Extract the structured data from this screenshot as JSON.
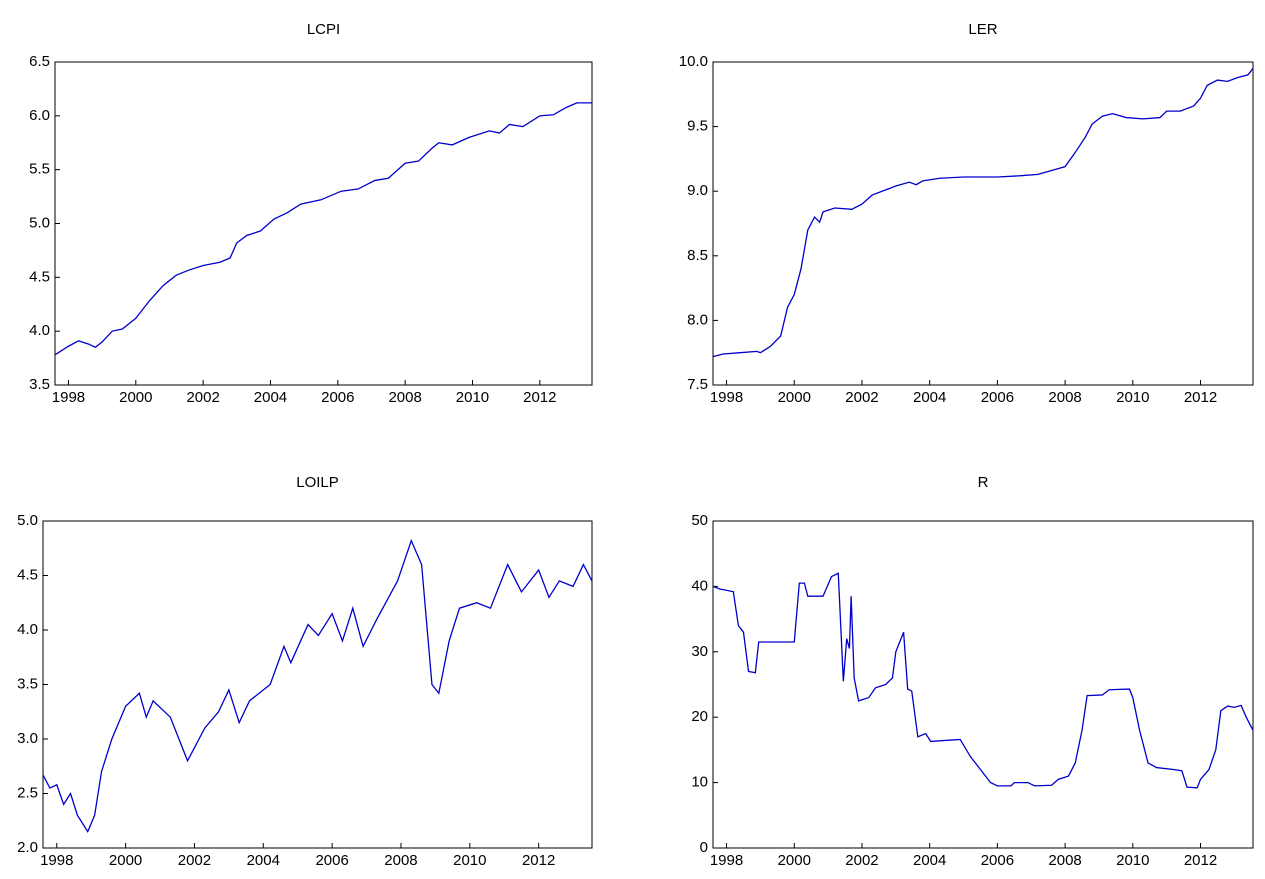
{
  "chart_data": [
    {
      "type": "line",
      "title": "LCPI",
      "color": "#0000cc",
      "x": [
        1997.6,
        1998.0,
        1998.3,
        1998.6,
        1998.8,
        1999.0,
        1999.3,
        1999.6,
        2000.0,
        2000.4,
        2000.8,
        2001.2,
        2001.6,
        2002.0,
        2002.5,
        2002.8,
        2003.0,
        2003.3,
        2003.7,
        2004.1,
        2004.5,
        2004.9,
        2005.5,
        2006.1,
        2006.6,
        2007.1,
        2007.5,
        2008.0,
        2008.4,
        2008.8,
        2009.0,
        2009.4,
        2009.9,
        2010.5,
        2010.8,
        2011.1,
        2011.5,
        2012.0,
        2012.4,
        2012.8,
        2013.1,
        2013.55
      ],
      "values": [
        3.78,
        3.86,
        3.91,
        3.88,
        3.85,
        3.9,
        4.0,
        4.02,
        4.12,
        4.28,
        4.42,
        4.52,
        4.57,
        4.61,
        4.64,
        4.68,
        4.82,
        4.89,
        4.93,
        5.04,
        5.1,
        5.18,
        5.22,
        5.3,
        5.32,
        5.4,
        5.42,
        5.56,
        5.58,
        5.7,
        5.75,
        5.73,
        5.8,
        5.86,
        5.84,
        5.92,
        5.9,
        6.0,
        6.01,
        6.08,
        6.12,
        6.12
      ],
      "xlim": [
        1997.6,
        2013.55
      ],
      "xticks": [
        1998,
        2000,
        2002,
        2004,
        2006,
        2008,
        2010,
        2012
      ],
      "ylim": [
        3.5,
        6.5
      ],
      "yticks": [
        3.5,
        {
          "value": 4,
          "label": "4.0"
        },
        4.5,
        {
          "value": 5,
          "label": "5.0"
        },
        5.5,
        {
          "value": 6,
          "label": "6.0"
        },
        6.5
      ]
    },
    {
      "type": "line",
      "title": "LER",
      "color": "#0000cc",
      "x": [
        1997.6,
        1997.9,
        1998.4,
        1998.9,
        1999.0,
        1999.3,
        1999.6,
        1999.8,
        2000.0,
        2000.2,
        2000.4,
        2000.6,
        2000.75,
        2000.85,
        2001.2,
        2001.7,
        2002.0,
        2002.3,
        2002.7,
        2003.0,
        2003.4,
        2003.6,
        2003.8,
        2004.3,
        2005.0,
        2005.5,
        2006.0,
        2006.7,
        2007.2,
        2007.6,
        2008.0,
        2008.3,
        2008.6,
        2008.8,
        2009.1,
        2009.4,
        2009.8,
        2010.3,
        2010.8,
        2011.0,
        2011.4,
        2011.8,
        2012.0,
        2012.2,
        2012.5,
        2012.8,
        2013.1,
        2013.4,
        2013.55
      ],
      "values": [
        7.72,
        7.74,
        7.75,
        7.76,
        7.75,
        7.8,
        7.88,
        8.1,
        8.2,
        8.4,
        8.7,
        8.8,
        8.76,
        8.84,
        8.87,
        8.86,
        8.9,
        8.97,
        9.01,
        9.04,
        9.07,
        9.05,
        9.08,
        9.1,
        9.11,
        9.11,
        9.11,
        9.12,
        9.13,
        9.16,
        9.19,
        9.3,
        9.42,
        9.52,
        9.58,
        9.6,
        9.57,
        9.56,
        9.57,
        9.62,
        9.62,
        9.66,
        9.72,
        9.82,
        9.86,
        9.85,
        9.88,
        9.9,
        9.95
      ],
      "xlim": [
        1997.6,
        2013.55
      ],
      "xticks": [
        1998,
        2000,
        2002,
        2004,
        2006,
        2008,
        2010,
        2012
      ],
      "ylim": [
        7.5,
        10
      ],
      "yticks": [
        7.5,
        {
          "value": 8,
          "label": "8.0"
        },
        8.5,
        {
          "value": 9,
          "label": "9.0"
        },
        9.5,
        {
          "value": 10,
          "label": "10.0"
        }
      ]
    },
    {
      "type": "line",
      "title": "LOILP",
      "color": "#0000cc",
      "x": [
        1997.6,
        1997.8,
        1998.0,
        1998.2,
        1998.4,
        1998.6,
        1998.9,
        1999.1,
        1999.3,
        1999.6,
        2000.0,
        2000.4,
        2000.6,
        2000.8,
        2001.3,
        2001.8,
        2002.3,
        2002.7,
        2003.0,
        2003.3,
        2003.6,
        2004.2,
        2004.6,
        2004.8,
        2005.3,
        2005.6,
        2006.0,
        2006.3,
        2006.6,
        2006.9,
        2007.3,
        2007.9,
        2008.3,
        2008.6,
        2008.9,
        2009.1,
        2009.4,
        2009.7,
        2010.2,
        2010.6,
        2011.1,
        2011.5,
        2012.0,
        2012.3,
        2012.6,
        2013.0,
        2013.3,
        2013.55
      ],
      "values": [
        2.67,
        2.55,
        2.58,
        2.4,
        2.5,
        2.3,
        2.15,
        2.3,
        2.7,
        3.0,
        3.3,
        3.42,
        3.2,
        3.35,
        3.2,
        2.8,
        3.1,
        3.25,
        3.45,
        3.15,
        3.35,
        3.5,
        3.85,
        3.7,
        4.05,
        3.95,
        4.15,
        3.9,
        4.2,
        3.85,
        4.1,
        4.45,
        4.82,
        4.6,
        3.5,
        3.42,
        3.9,
        4.2,
        4.25,
        4.2,
        4.6,
        4.35,
        4.55,
        4.3,
        4.45,
        4.4,
        4.6,
        4.45
      ],
      "xlim": [
        1997.6,
        2013.55
      ],
      "xticks": [
        1998,
        2000,
        2002,
        2004,
        2006,
        2008,
        2010,
        2012
      ],
      "ylim": [
        2,
        5
      ],
      "yticks": [
        {
          "value": 2,
          "label": "2.0"
        },
        2.5,
        {
          "value": 3,
          "label": "3.0"
        },
        3.5,
        {
          "value": 4,
          "label": "4.0"
        },
        4.5,
        {
          "value": 5,
          "label": "5.0"
        }
      ]
    },
    {
      "type": "line",
      "title": "R",
      "color": "#0000cc",
      "x": [
        1997.6,
        1997.8,
        1998.2,
        1998.35,
        1998.5,
        1998.65,
        1998.85,
        1998.95,
        2000.0,
        2000.15,
        2000.3,
        2000.4,
        2000.85,
        2001.1,
        2001.3,
        2001.45,
        2001.55,
        2001.63,
        2001.68,
        2001.77,
        2001.9,
        2002.2,
        2002.4,
        2002.7,
        2002.9,
        2003.0,
        2003.23,
        2003.35,
        2003.47,
        2003.65,
        2003.88,
        2004.03,
        2004.9,
        2005.2,
        2005.5,
        2005.8,
        2006.0,
        2006.4,
        2006.5,
        2006.9,
        2007.1,
        2007.6,
        2007.8,
        2008.1,
        2008.3,
        2008.5,
        2008.65,
        2009.1,
        2009.3,
        2009.9,
        2010.0,
        2010.2,
        2010.45,
        2010.7,
        2011.2,
        2011.45,
        2011.6,
        2011.9,
        2012.0,
        2012.25,
        2012.45,
        2012.6,
        2012.8,
        2013.0,
        2013.2,
        2013.35,
        2013.55
      ],
      "values": [
        40,
        39.6,
        39.2,
        34,
        33,
        27,
        26.8,
        31.5,
        31.5,
        40.5,
        40.5,
        38.5,
        38.5,
        41.5,
        42,
        25.5,
        32,
        30.5,
        38.5,
        26,
        22.5,
        23,
        24.5,
        25,
        26,
        30,
        33,
        24.3,
        24,
        17,
        17.5,
        16.3,
        16.6,
        14,
        12,
        10,
        9.5,
        9.5,
        10,
        10,
        9.5,
        9.6,
        10.5,
        11,
        13,
        18,
        23.3,
        23.4,
        24.2,
        24.3,
        23,
        18,
        13,
        12.3,
        12,
        11.8,
        9.3,
        9.2,
        10.5,
        12,
        15,
        21,
        21.7,
        21.5,
        21.8,
        20,
        18
      ],
      "xlim": [
        1997.6,
        2013.55
      ],
      "xticks": [
        1998,
        2000,
        2002,
        2004,
        2006,
        2008,
        2010,
        2012
      ],
      "ylim": [
        0,
        50
      ],
      "yticks": [
        0,
        10,
        20,
        30,
        40,
        50
      ]
    }
  ]
}
